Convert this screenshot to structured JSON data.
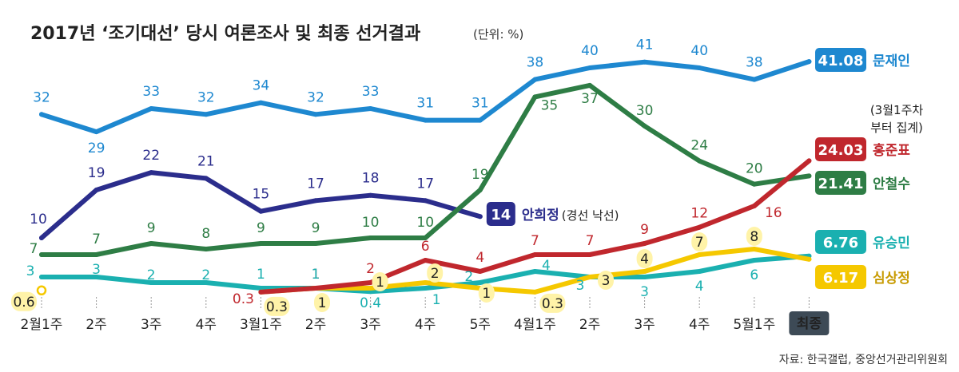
{
  "title": "2017년 ‘조기대선’ 당시 여론조사 및 최종 선거결과",
  "unit": "(단위: %)",
  "source": "자료: 한국갤럽, 중앙선거관리위원회",
  "chart_data": {
    "type": "line",
    "categories": [
      "2월1주",
      "2주",
      "3주",
      "4주",
      "3월1주",
      "2주",
      "3주",
      "4주",
      "5주",
      "4월1주",
      "2주",
      "3주",
      "4주",
      "5월1주",
      "최종"
    ],
    "series": [
      {
        "name": "문재인",
        "color": "#1e88d0",
        "values": [
          32,
          29,
          33,
          32,
          34,
          32,
          33,
          31,
          31,
          38,
          40,
          41,
          40,
          38,
          41.08
        ],
        "labels": [
          "32",
          "29",
          "33",
          "32",
          "34",
          "32",
          "33",
          "31",
          "31",
          "38",
          "40",
          "41",
          "40",
          "38",
          ""
        ],
        "final": "41.08"
      },
      {
        "name": "안철수",
        "color": "#2e7d45",
        "values": [
          7,
          7,
          9,
          8,
          9,
          9,
          10,
          10,
          19,
          35,
          37,
          30,
          24,
          20,
          21.41
        ],
        "labels": [
          "7",
          "7",
          "9",
          "8",
          "9",
          "9",
          "10",
          "10",
          "19",
          "35",
          "37",
          "30",
          "24",
          "20",
          ""
        ],
        "final": "21.41"
      },
      {
        "name": "홍준표",
        "color": "#c0272d",
        "values": [
          null,
          null,
          null,
          null,
          0.3,
          1,
          2,
          6,
          4,
          7,
          7,
          9,
          12,
          16,
          24.03
        ],
        "labels": [
          "",
          "",
          "",
          "",
          "0.3",
          "1",
          "2",
          "6",
          "4",
          "7",
          "7",
          "9",
          "12",
          "16",
          ""
        ],
        "final": "24.03",
        "note": "(3월1주차 부터 집계)",
        "note_lines": [
          "(3월1주차",
          "부터 집계)"
        ]
      },
      {
        "name": "유승민",
        "color": "#1ab0b0",
        "values": [
          3,
          3,
          2,
          2,
          1,
          1,
          0.4,
          1,
          2,
          4,
          3,
          3,
          4,
          6,
          6.76
        ],
        "labels": [
          "3",
          "3",
          "2",
          "2",
          "1",
          "1",
          "0.4",
          "1",
          "2",
          "4",
          "3",
          "3",
          "4",
          "6",
          ""
        ],
        "final": "6.76"
      },
      {
        "name": "심상정",
        "color": "#f5c800",
        "values": [
          0.6,
          null,
          null,
          null,
          0.3,
          1,
          1,
          2,
          1,
          0.3,
          3,
          4,
          7,
          8,
          6.17
        ],
        "labels": [
          "0.6",
          "",
          "",
          "",
          "0.3",
          "1",
          "1",
          "2",
          "1",
          "0.3",
          "3",
          "4",
          "7",
          "8",
          ""
        ],
        "final": "6.17"
      },
      {
        "name": "안희정",
        "color": "#2b2d8c",
        "values": [
          10,
          19,
          22,
          21,
          15,
          17,
          18,
          17,
          14,
          null,
          null,
          null,
          null,
          null,
          null
        ],
        "labels": [
          "10",
          "19",
          "22",
          "21",
          "15",
          "17",
          "18",
          "17",
          "",
          "",
          "",
          "",
          "",
          "",
          ""
        ],
        "final": "14",
        "note": "(경선 낙선)"
      }
    ],
    "grid": false,
    "legend": "end-labels"
  }
}
